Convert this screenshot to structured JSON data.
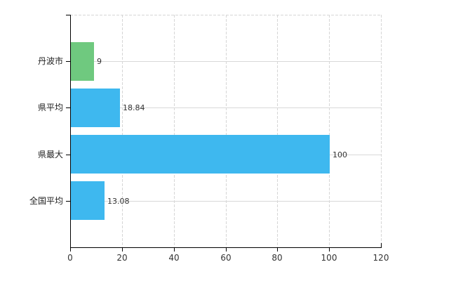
{
  "chart_data": {
    "type": "bar",
    "orientation": "horizontal",
    "title": "",
    "xlabel": "",
    "ylabel": "",
    "categories": [
      "丹波市",
      "県平均",
      "県最大",
      "全国平均"
    ],
    "values": [
      9,
      18.84,
      100,
      13.08
    ],
    "value_labels": [
      "9",
      "18.84",
      "100",
      "13.08"
    ],
    "bar_colors": [
      "#6fc97f",
      "#3eb8ef",
      "#3eb8ef",
      "#3eb8ef"
    ],
    "xlim": [
      0,
      120
    ],
    "x_ticks": [
      0,
      20,
      40,
      60,
      80,
      100,
      120
    ],
    "grid": "on",
    "legend": "none",
    "colors": {
      "axis": "#000000",
      "grid": "#d9d9d9",
      "text": "#333333",
      "background": "#ffffff"
    }
  }
}
